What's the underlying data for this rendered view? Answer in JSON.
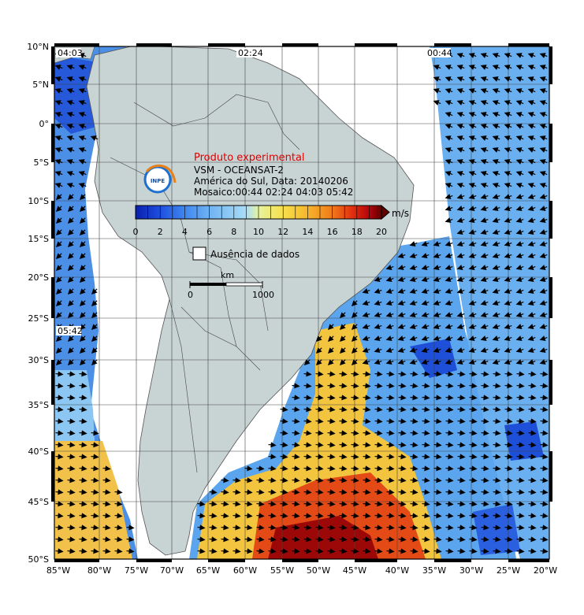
{
  "product": {
    "experimental_label": "Produto experimental",
    "line1": "VSM - OCEANSAT-2",
    "line2": "América do Sul, Data: 20140206",
    "line3": "Mosaico:00:44 02:24 04:03 05:42",
    "logo_text": "INPE"
  },
  "colorbar": {
    "unit": "m/s",
    "ticks": [
      "0",
      "2",
      "4",
      "6",
      "8",
      "10",
      "12",
      "14",
      "16",
      "18",
      "20"
    ],
    "colors": [
      "#0a1fae",
      "#1f4fe0",
      "#3f86ee",
      "#6fb3f2",
      "#a9dcf7",
      "#e6f3a0",
      "#f7e04a",
      "#f5b52c",
      "#f07a1a",
      "#e23010",
      "#b3050a",
      "#600000"
    ]
  },
  "legend": {
    "no_data_label": "Ausência de dados"
  },
  "scalebar": {
    "unit_label": "km",
    "start_label": "0",
    "end_label": "1000"
  },
  "pass_times": [
    "04:03",
    "02:24",
    "00:44",
    "05:42"
  ],
  "axes": {
    "lat_labels": [
      "10°N",
      "5°N",
      "0°",
      "5°S",
      "10°S",
      "15°S",
      "20°S",
      "25°S",
      "30°S",
      "35°S",
      "40°S",
      "45°S",
      "50°S"
    ],
    "lon_labels": [
      "85°W",
      "80°W",
      "75°W",
      "70°W",
      "65°W",
      "60°W",
      "55°W",
      "50°W",
      "45°W",
      "40°W",
      "35°W",
      "30°W",
      "25°W",
      "20°W"
    ]
  },
  "style": {
    "land_color": "#c8d3d3",
    "nodata_color": "#ffffff",
    "border_color": "#000000"
  }
}
